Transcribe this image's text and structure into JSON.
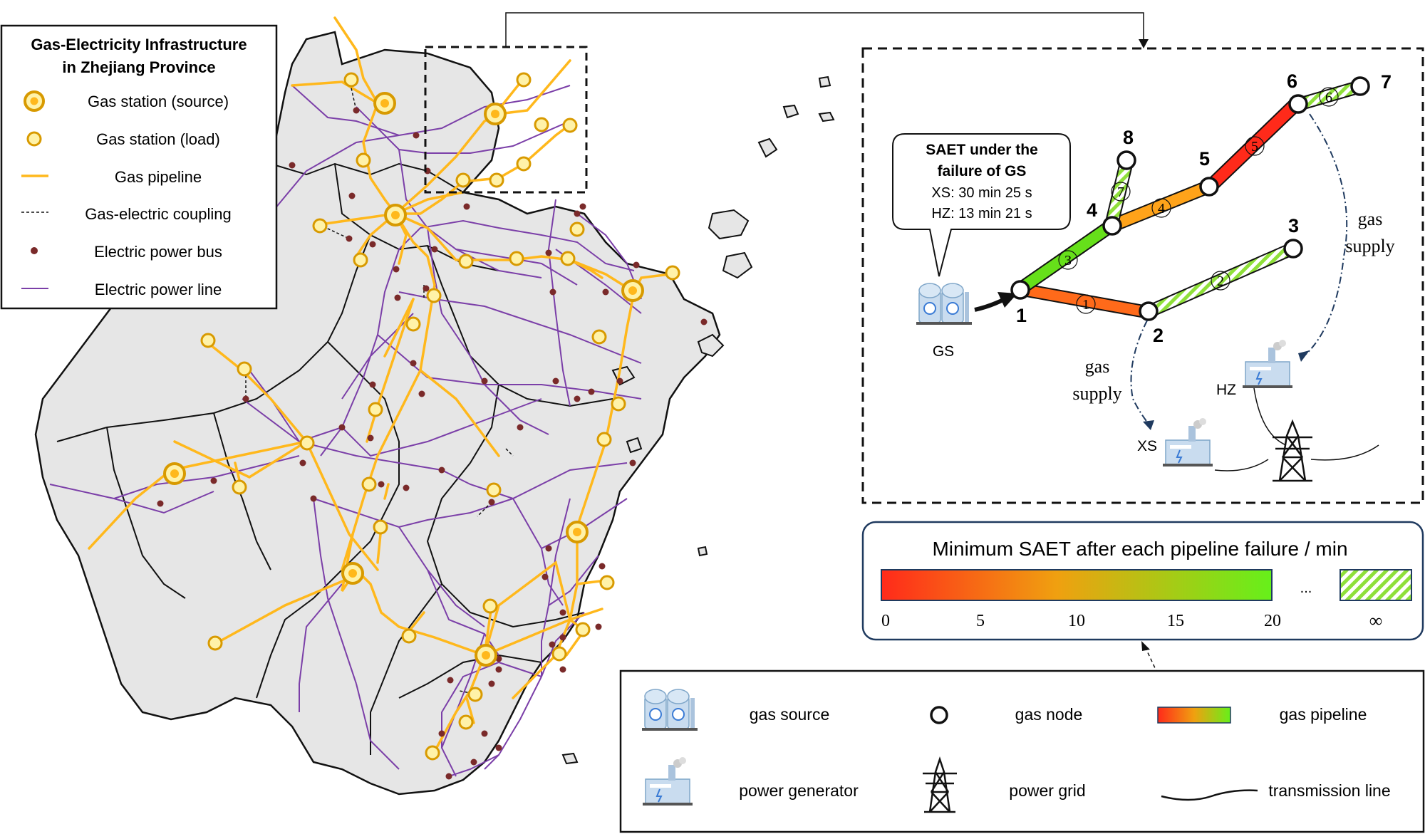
{
  "legend_map": {
    "title_line1": "Gas-Electricity Infrastructure",
    "title_line2": "in Zhejiang Province",
    "items": [
      {
        "label": "Gas station (source)"
      },
      {
        "label": "Gas station (load)"
      },
      {
        "label": "Gas pipeline"
      },
      {
        "label": "Gas-electric coupling"
      },
      {
        "label": "Electric power bus"
      },
      {
        "label": "Electric power line"
      }
    ]
  },
  "inset": {
    "callout": {
      "line1": "SAET under the",
      "line2": "failure of GS",
      "line3": "XS: 30 min 25 s",
      "line4": "HZ: 13 min 21 s"
    },
    "source_label": "GS",
    "nodes": [
      {
        "id": "1",
        "label": "1"
      },
      {
        "id": "2",
        "label": "2"
      },
      {
        "id": "3",
        "label": "3"
      },
      {
        "id": "4",
        "label": "4"
      },
      {
        "id": "5",
        "label": "5"
      },
      {
        "id": "6",
        "label": "6"
      },
      {
        "id": "7",
        "label": "7"
      },
      {
        "id": "8",
        "label": "8"
      }
    ],
    "pipes": [
      {
        "label": "1",
        "color": "#ff6a1a"
      },
      {
        "label": "2",
        "color": "hatched"
      },
      {
        "label": "3",
        "color": "#66e01a"
      },
      {
        "label": "4",
        "color": "#ffa31a"
      },
      {
        "label": "5",
        "color": "#ff2a1a"
      },
      {
        "label": "6",
        "color": "hatched"
      },
      {
        "label": "7",
        "color": "hatched"
      }
    ],
    "gas_supply_right": {
      "line1": "gas",
      "line2": "supply"
    },
    "gas_supply_left": {
      "line1": "gas",
      "line2": "supply"
    },
    "gen_xs": "XS",
    "gen_hz": "HZ"
  },
  "colorbar": {
    "title": "Minimum SAET after each pipeline failure / min",
    "ticks": [
      "0",
      "5",
      "10",
      "15",
      "20"
    ],
    "ellipsis": "...",
    "infinity": "∞",
    "color_low": "#ff2a1a",
    "color_mid": "#ffa31a",
    "color_high": "#66f01a"
  },
  "bottom_legend": {
    "items": [
      {
        "label": "gas source",
        "icon": "gas-source-icon"
      },
      {
        "label": "gas node",
        "icon": "gas-node-icon"
      },
      {
        "label": "gas pipeline",
        "icon": "gas-pipeline-icon"
      },
      {
        "label": "power generator",
        "icon": "power-generator-icon"
      },
      {
        "label": "power grid",
        "icon": "power-grid-icon"
      },
      {
        "label": "transmission line",
        "icon": "transmission-line-icon"
      }
    ]
  },
  "colors": {
    "gas_pipeline": "#ffb81c",
    "power_line": "#7b3fa8",
    "bus": "#7a2a2a",
    "land": "#e6e6e6"
  }
}
